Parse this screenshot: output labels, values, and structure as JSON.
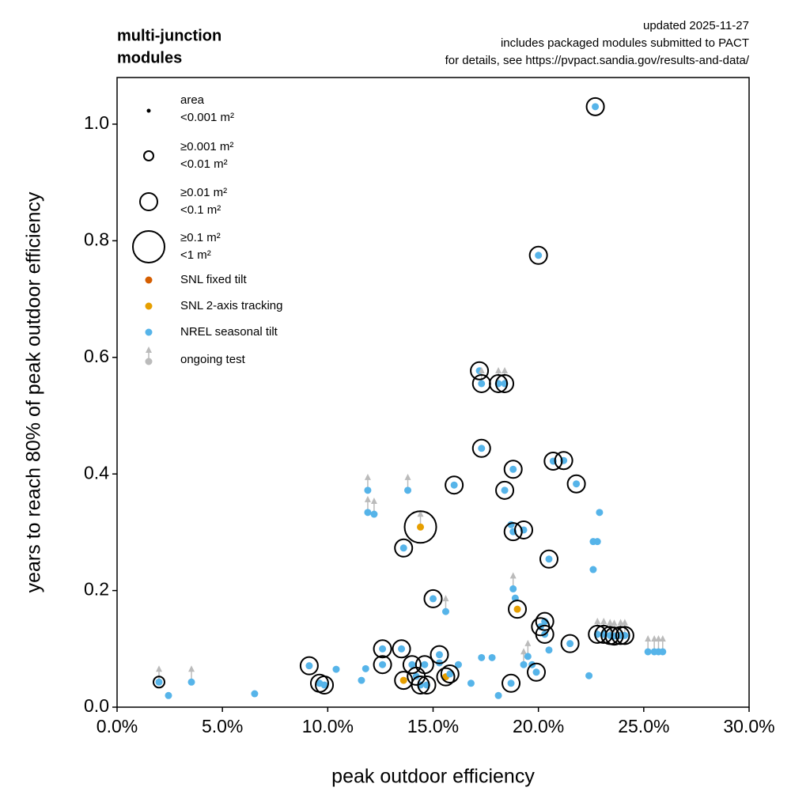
{
  "chart_data": {
    "type": "scatter",
    "title": [
      "multi-junction",
      "modules"
    ],
    "notes": [
      "updated 2025-11-27",
      "includes packaged modules submitted to PACT",
      "for details, see https://pvpact.sandia.gov/results-and-data/"
    ],
    "xlabel": "peak outdoor efficiency",
    "ylabel": "years to reach 80% of peak outdoor efficiency",
    "xlim": [
      0,
      0.3
    ],
    "ylim": [
      0,
      1.08
    ],
    "xticks": [
      {
        "value": 0,
        "label": "0.0%"
      },
      {
        "value": 0.05,
        "label": "5.0%"
      },
      {
        "value": 0.1,
        "label": "10.0%"
      },
      {
        "value": 0.15,
        "label": "15.0%"
      },
      {
        "value": 0.2,
        "label": "20.0%"
      },
      {
        "value": 0.25,
        "label": "25.0%"
      },
      {
        "value": 0.3,
        "label": "30.0%"
      }
    ],
    "yticks": [
      {
        "value": 0,
        "label": "0.0"
      },
      0.2,
      0.4,
      0.6,
      0.8,
      {
        "value": 1,
        "label": "1.0"
      }
    ],
    "size_legend": {
      "title": "area",
      "entries": [
        [
          "<0.001 m²"
        ],
        [
          "≥0.001 m²",
          "<0.01 m²"
        ],
        [
          "≥0.01 m²",
          "<0.1 m²"
        ],
        [
          "≥0.1 m²",
          "<1 m²"
        ]
      ]
    },
    "ongoing_label": "ongoing test",
    "ongoing_color": "#bbbbbb",
    "series": [
      {
        "name": "SNL fixed tilt",
        "color": "#d55e00",
        "x": [],
        "values": [],
        "area": [],
        "ongoing": []
      },
      {
        "name": "SNL 2-axis tracking",
        "color": "#e69f00",
        "x": [
          0.136,
          0.144,
          0.156,
          0.19
        ],
        "values": [
          0.046,
          0.309,
          0.052,
          0.168
        ],
        "area": [
          2,
          3,
          2,
          2
        ],
        "ongoing": [
          false,
          true,
          false,
          false
        ]
      },
      {
        "name": "NREL seasonal tilt",
        "color": "#56b4e9",
        "x": [
          0.0199,
          0.0244,
          0.0353,
          0.0653,
          0.0912,
          0.0961,
          0.0984,
          0.104,
          0.116,
          0.118,
          0.119,
          0.119,
          0.122,
          0.126,
          0.126,
          0.135,
          0.136,
          0.138,
          0.14,
          0.142,
          0.144,
          0.146,
          0.147,
          0.15,
          0.153,
          0.153,
          0.156,
          0.158,
          0.16,
          0.162,
          0.168,
          0.172,
          0.173,
          0.173,
          0.173,
          0.178,
          0.181,
          0.181,
          0.184,
          0.184,
          0.187,
          0.187,
          0.188,
          0.188,
          0.188,
          0.189,
          0.193,
          0.193,
          0.195,
          0.197,
          0.199,
          0.2,
          0.201,
          0.203,
          0.203,
          0.205,
          0.205,
          0.207,
          0.212,
          0.215,
          0.218,
          0.224,
          0.226,
          0.226,
          0.228,
          0.229,
          0.227,
          0.228,
          0.231,
          0.234,
          0.236,
          0.239,
          0.241,
          0.252,
          0.255,
          0.257,
          0.259
        ],
        "values": [
          0.043,
          0.02,
          0.043,
          0.023,
          0.071,
          0.041,
          0.038,
          0.065,
          0.046,
          0.066,
          0.334,
          0.372,
          0.331,
          0.1,
          0.073,
          0.1,
          0.273,
          0.372,
          0.073,
          0.053,
          0.038,
          0.073,
          0.038,
          0.186,
          0.09,
          0.076,
          0.164,
          0.057,
          0.381,
          0.073,
          0.041,
          0.577,
          0.444,
          0.555,
          0.085,
          0.085,
          0.02,
          0.555,
          0.555,
          0.372,
          0.041,
          0.313,
          0.301,
          0.203,
          0.408,
          0.187,
          0.304,
          0.073,
          0.087,
          0.073,
          0.06,
          0.775,
          0.138,
          0.147,
          0.125,
          0.254,
          0.098,
          0.422,
          0.423,
          0.109,
          0.383,
          0.054,
          0.236,
          0.284,
          0.284,
          0.334,
          1.03,
          0.125,
          0.125,
          0.123,
          0.122,
          0.123,
          0.123,
          0.095,
          0.095,
          0.095,
          0.095
        ],
        "area": [
          1,
          0,
          0,
          0,
          2,
          2,
          2,
          0,
          0,
          0,
          0,
          0,
          0,
          2,
          2,
          2,
          2,
          0,
          2,
          2,
          2,
          2,
          2,
          2,
          2,
          0,
          0,
          2,
          2,
          0,
          0,
          2,
          2,
          2,
          0,
          0,
          0,
          2,
          2,
          2,
          2,
          0,
          2,
          0,
          2,
          0,
          2,
          0,
          0,
          0,
          2,
          2,
          2,
          2,
          2,
          2,
          0,
          2,
          2,
          2,
          2,
          0,
          0,
          0,
          0,
          0,
          2,
          2,
          2,
          2,
          2,
          2,
          2,
          0,
          0,
          0,
          0
        ],
        "ongoing": [
          true,
          false,
          true,
          false,
          false,
          false,
          false,
          false,
          false,
          false,
          true,
          true,
          true,
          false,
          false,
          false,
          false,
          true,
          false,
          false,
          false,
          false,
          false,
          false,
          false,
          false,
          true,
          false,
          false,
          false,
          false,
          false,
          false,
          true,
          false,
          false,
          false,
          true,
          true,
          false,
          false,
          false,
          false,
          true,
          false,
          false,
          false,
          true,
          true,
          false,
          false,
          false,
          false,
          false,
          false,
          false,
          false,
          false,
          false,
          false,
          false,
          false,
          false,
          false,
          false,
          false,
          false,
          true,
          true,
          true,
          true,
          true,
          true,
          true,
          true,
          true,
          true
        ]
      }
    ]
  }
}
